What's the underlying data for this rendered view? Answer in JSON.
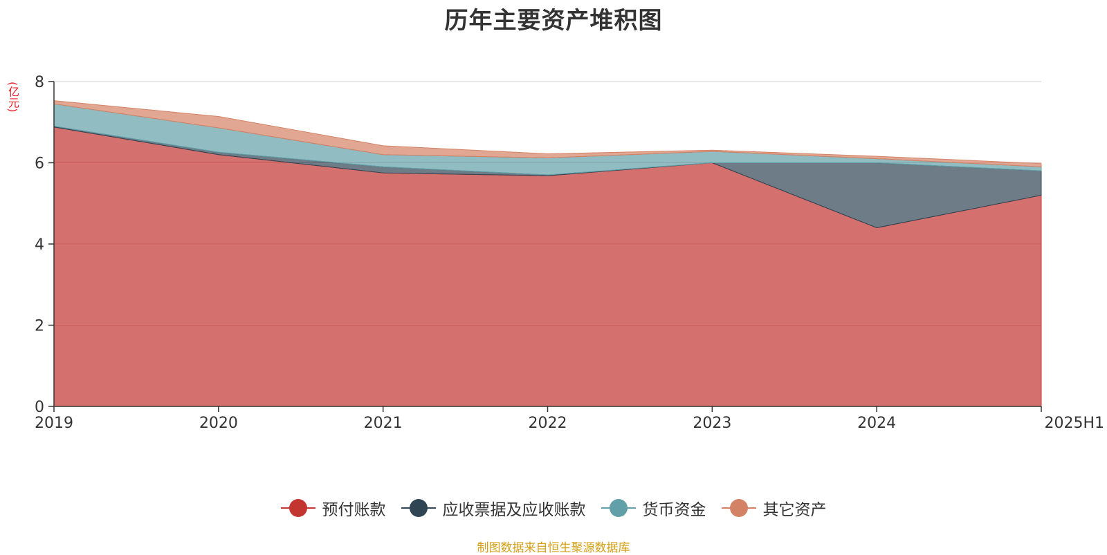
{
  "chart_data": {
    "type": "area",
    "stacked": true,
    "title": "历年主要资产堆积图",
    "ylabel": "(亿元)",
    "xlabel": "",
    "categories": [
      "2019",
      "2020",
      "2021",
      "2022",
      "2023",
      "2024",
      "2025H1"
    ],
    "ylim": [
      0,
      8
    ],
    "yticks": [
      0,
      2,
      4,
      6,
      8
    ],
    "grid": true,
    "legend_position": "bottom",
    "series": [
      {
        "name": "预付账款",
        "color": "#c23531",
        "values": [
          6.88,
          6.2,
          5.75,
          5.68,
          6.0,
          4.4,
          5.2
        ]
      },
      {
        "name": "应收票据及应收账款",
        "color": "#2f4554",
        "values": [
          0.02,
          0.06,
          0.15,
          0.02,
          0.0,
          1.6,
          0.6
        ]
      },
      {
        "name": "货币资金",
        "color": "#61a0a8",
        "values": [
          0.55,
          0.6,
          0.3,
          0.42,
          0.28,
          0.1,
          0.1
        ]
      },
      {
        "name": "其它资产",
        "color": "#d48265",
        "values": [
          0.08,
          0.28,
          0.22,
          0.1,
          0.03,
          0.06,
          0.08
        ]
      }
    ]
  },
  "source_note": "制图数据来自恒生聚源数据库"
}
